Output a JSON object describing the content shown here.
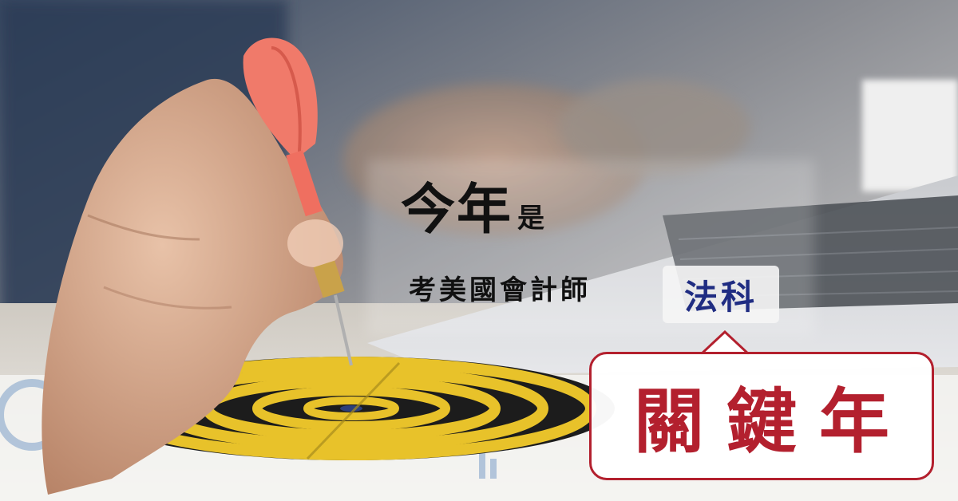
{
  "headline": {
    "line1_big": "今年",
    "line1_small": "是",
    "line2_prefix": "考美國會計師",
    "subject": "法科",
    "callout": "關鍵年"
  },
  "colors": {
    "accent_red": "#b3202e",
    "accent_navy": "#1f2c82",
    "text_dark": "#111111"
  },
  "icons": [
    "dart-icon",
    "dartboard-icon",
    "laptop-icon"
  ]
}
